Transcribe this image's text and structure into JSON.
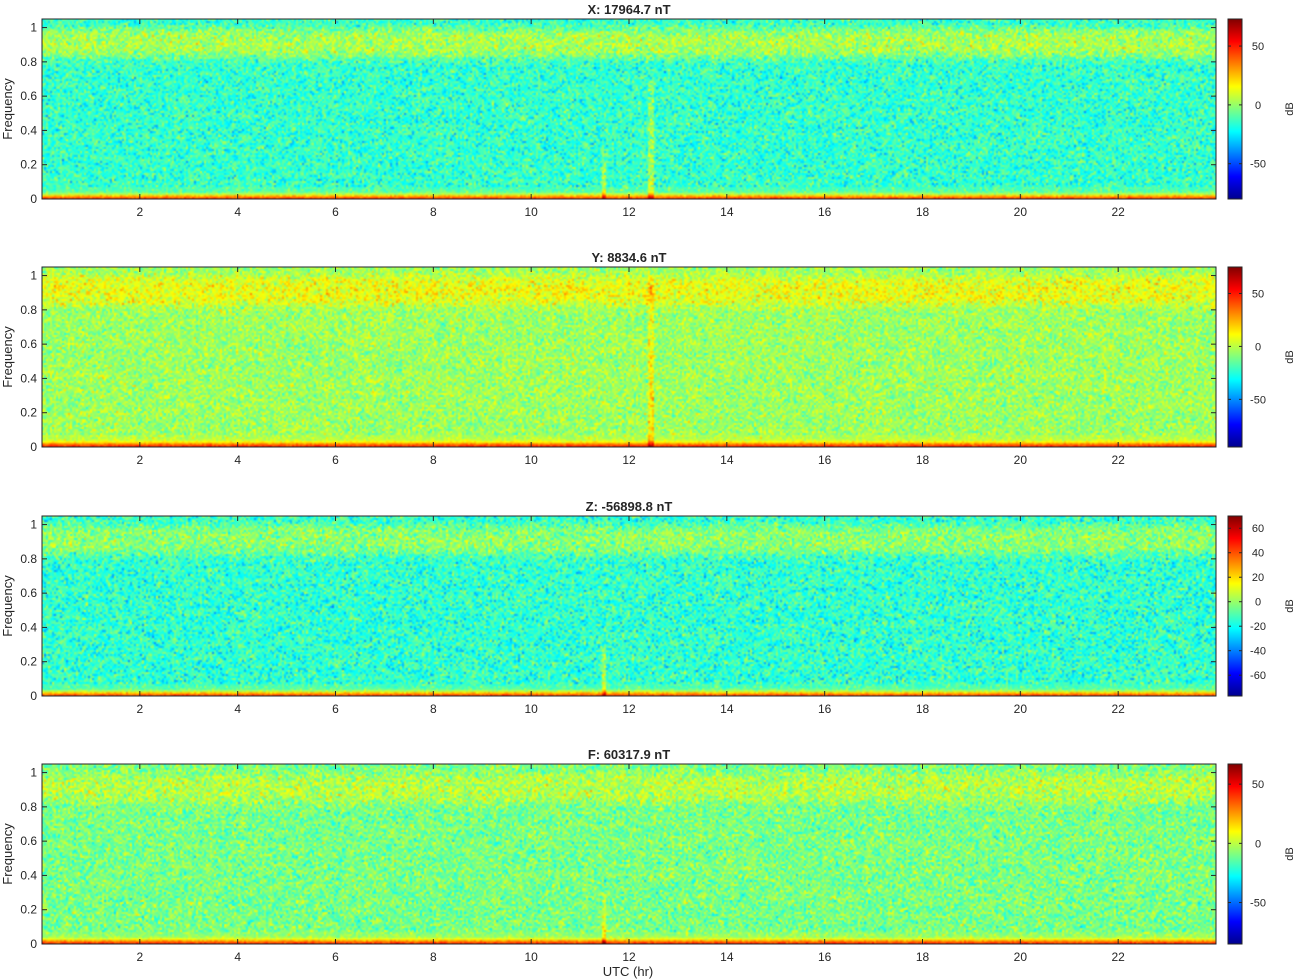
{
  "figure": {
    "xlabel": "UTC (hr)"
  },
  "chart_data": [
    {
      "type": "heatmap",
      "title": "X: 17964.7 nT",
      "ylabel": "Frequency",
      "xlim": [
        0,
        24
      ],
      "ylim": [
        0,
        1.05
      ],
      "xticks": [
        2,
        4,
        6,
        8,
        10,
        12,
        14,
        16,
        18,
        20,
        22
      ],
      "yticks": [
        0,
        0.2,
        0.4,
        0.6,
        0.8,
        1
      ],
      "colorbar": {
        "label": "dB",
        "range": [
          -80,
          73
        ],
        "ticks": [
          50,
          0,
          -50
        ],
        "colormap": "jet"
      },
      "background_level_db": -15,
      "features": [
        {
          "kind": "low_frequency_band",
          "freq_max": 0.03,
          "level_db": 45
        },
        {
          "kind": "high_frequency_band",
          "freq_range": [
            0.82,
            1.0
          ],
          "level_db": 5
        },
        {
          "kind": "vertical_line",
          "time_hr": 12.45,
          "freq_max": 0.7
        },
        {
          "kind": "vertical_line",
          "time_hr": 11.5,
          "freq_max": 0.3
        }
      ]
    },
    {
      "type": "heatmap",
      "title": "Y: 8834.6 nT",
      "ylabel": "Frequency",
      "xlim": [
        0,
        24
      ],
      "ylim": [
        0,
        1.05
      ],
      "xticks": [
        2,
        4,
        6,
        8,
        10,
        12,
        14,
        16,
        18,
        20,
        22
      ],
      "yticks": [
        0,
        0.2,
        0.4,
        0.6,
        0.8,
        1
      ],
      "colorbar": {
        "label": "dB",
        "range": [
          -95,
          75
        ],
        "ticks": [
          50,
          0,
          -50
        ],
        "colormap": "jet"
      },
      "background_level_db": -5,
      "features": [
        {
          "kind": "low_frequency_band",
          "freq_max": 0.03,
          "level_db": 48
        },
        {
          "kind": "high_frequency_band",
          "freq_range": [
            0.82,
            1.0
          ],
          "level_db": 10
        },
        {
          "kind": "vertical_line",
          "time_hr": 12.45,
          "freq_max": 1.0
        }
      ]
    },
    {
      "type": "heatmap",
      "title": "Z: -56898.8 nT",
      "ylabel": "Frequency",
      "xlim": [
        0,
        24
      ],
      "ylim": [
        0,
        1.05
      ],
      "xticks": [
        2,
        4,
        6,
        8,
        10,
        12,
        14,
        16,
        18,
        20,
        22
      ],
      "yticks": [
        0,
        0.2,
        0.4,
        0.6,
        0.8,
        1
      ],
      "colorbar": {
        "label": "dB",
        "range": [
          -77,
          70
        ],
        "ticks": [
          60,
          40,
          20,
          0,
          -20,
          -40,
          -60
        ],
        "colormap": "jet"
      },
      "background_level_db": -15,
      "features": [
        {
          "kind": "low_frequency_band",
          "freq_max": 0.03,
          "level_db": 42
        },
        {
          "kind": "high_frequency_band",
          "freq_range": [
            0.82,
            1.0
          ],
          "level_db": 0
        },
        {
          "kind": "vertical_line",
          "time_hr": 11.5,
          "freq_max": 0.3
        }
      ]
    },
    {
      "type": "heatmap",
      "title": "F: 60317.9 nT",
      "ylabel": "Frequency",
      "xlim": [
        0,
        24
      ],
      "ylim": [
        0,
        1.05
      ],
      "xticks": [
        2,
        4,
        6,
        8,
        10,
        12,
        14,
        16,
        18,
        20,
        22
      ],
      "yticks": [
        0,
        0.2,
        0.4,
        0.6,
        0.8,
        1
      ],
      "colorbar": {
        "label": "dB",
        "range": [
          -85,
          67
        ],
        "ticks": [
          50,
          0,
          -50
        ],
        "colormap": "jet"
      },
      "background_level_db": -10,
      "features": [
        {
          "kind": "low_frequency_band",
          "freq_max": 0.03,
          "level_db": 42
        },
        {
          "kind": "high_frequency_band",
          "freq_range": [
            0.82,
            1.0
          ],
          "level_db": 0
        },
        {
          "kind": "vertical_line",
          "time_hr": 11.5,
          "freq_max": 0.3
        }
      ]
    }
  ]
}
